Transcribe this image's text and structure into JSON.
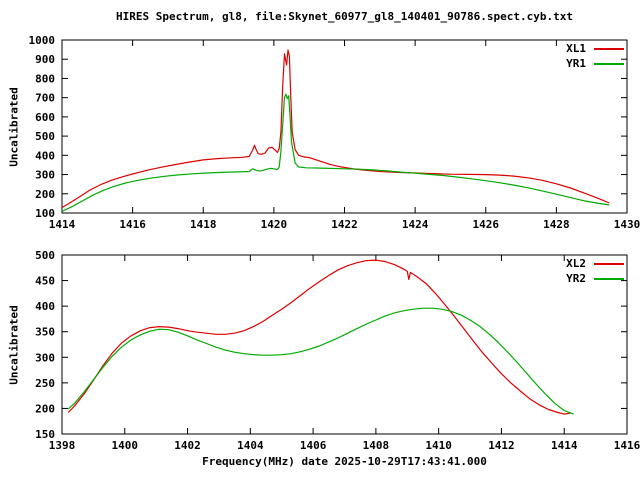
{
  "chart_data": [
    {
      "type": "line",
      "title": "HIRES Spectrum, gl8, file:Skynet_60977_gl8_140401_90786.spect.cyb.txt",
      "xlabel": "",
      "ylabel": "Uncalibrated",
      "xlim": [
        1414,
        1430
      ],
      "ylim": [
        100,
        1000
      ],
      "xticks": [
        1414,
        1416,
        1418,
        1420,
        1422,
        1424,
        1426,
        1428,
        1430
      ],
      "yticks": [
        100,
        200,
        300,
        400,
        500,
        600,
        700,
        800,
        900,
        1000
      ],
      "grid": false,
      "legend_position": "top-right",
      "legend": [
        {
          "name": "XL1",
          "color": "#dd0000"
        },
        {
          "name": "YR1",
          "color": "#00aa00"
        }
      ],
      "series": [
        {
          "name": "XL1",
          "color": "#dd0000",
          "points": [
            [
              1414.0,
              128
            ],
            [
              1414.2,
              150
            ],
            [
              1414.5,
              185
            ],
            [
              1414.8,
              220
            ],
            [
              1415.1,
              248
            ],
            [
              1415.4,
              270
            ],
            [
              1415.7,
              288
            ],
            [
              1416.0,
              303
            ],
            [
              1416.4,
              322
            ],
            [
              1416.8,
              338
            ],
            [
              1417.2,
              352
            ],
            [
              1417.6,
              365
            ],
            [
              1418.0,
              376
            ],
            [
              1418.4,
              383
            ],
            [
              1418.8,
              387
            ],
            [
              1419.1,
              390
            ],
            [
              1419.3,
              394
            ],
            [
              1419.4,
              428
            ],
            [
              1419.45,
              452
            ],
            [
              1419.5,
              430
            ],
            [
              1419.55,
              410
            ],
            [
              1419.65,
              405
            ],
            [
              1419.75,
              412
            ],
            [
              1419.85,
              438
            ],
            [
              1419.95,
              442
            ],
            [
              1420.05,
              425
            ],
            [
              1420.1,
              415
            ],
            [
              1420.15,
              435
            ],
            [
              1420.2,
              520
            ],
            [
              1420.25,
              760
            ],
            [
              1420.3,
              928
            ],
            [
              1420.33,
              900
            ],
            [
              1420.36,
              870
            ],
            [
              1420.4,
              948
            ],
            [
              1420.44,
              915
            ],
            [
              1420.48,
              700
            ],
            [
              1420.52,
              520
            ],
            [
              1420.6,
              430
            ],
            [
              1420.7,
              400
            ],
            [
              1420.85,
              392
            ],
            [
              1421.0,
              388
            ],
            [
              1421.3,
              370
            ],
            [
              1421.6,
              352
            ],
            [
              1421.9,
              340
            ],
            [
              1422.2,
              331
            ],
            [
              1422.5,
              324
            ],
            [
              1422.8,
              319
            ],
            [
              1423.1,
              315
            ],
            [
              1423.5,
              311
            ],
            [
              1424.0,
              308
            ],
            [
              1424.5,
              305
            ],
            [
              1425.0,
              302
            ],
            [
              1425.5,
              301
            ],
            [
              1426.0,
              300
            ],
            [
              1426.4,
              297
            ],
            [
              1426.8,
              292
            ],
            [
              1427.2,
              283
            ],
            [
              1427.6,
              270
            ],
            [
              1428.0,
              252
            ],
            [
              1428.4,
              230
            ],
            [
              1428.8,
              203
            ],
            [
              1429.2,
              175
            ],
            [
              1429.5,
              152
            ]
          ]
        },
        {
          "name": "YR1",
          "color": "#00aa00",
          "points": [
            [
              1414.0,
              108
            ],
            [
              1414.3,
              135
            ],
            [
              1414.6,
              165
            ],
            [
              1414.9,
              195
            ],
            [
              1415.2,
              220
            ],
            [
              1415.5,
              240
            ],
            [
              1415.8,
              256
            ],
            [
              1416.1,
              268
            ],
            [
              1416.5,
              281
            ],
            [
              1416.9,
              291
            ],
            [
              1417.3,
              298
            ],
            [
              1417.7,
              304
            ],
            [
              1418.1,
              308
            ],
            [
              1418.5,
              311
            ],
            [
              1419.0,
              314
            ],
            [
              1419.3,
              316
            ],
            [
              1419.4,
              330
            ],
            [
              1419.5,
              322
            ],
            [
              1419.6,
              318
            ],
            [
              1419.7,
              322
            ],
            [
              1419.8,
              328
            ],
            [
              1419.9,
              332
            ],
            [
              1420.0,
              330
            ],
            [
              1420.1,
              326
            ],
            [
              1420.15,
              340
            ],
            [
              1420.2,
              420
            ],
            [
              1420.25,
              560
            ],
            [
              1420.3,
              700
            ],
            [
              1420.34,
              718
            ],
            [
              1420.38,
              695
            ],
            [
              1420.42,
              710
            ],
            [
              1420.46,
              600
            ],
            [
              1420.5,
              470
            ],
            [
              1420.6,
              360
            ],
            [
              1420.7,
              340
            ],
            [
              1420.9,
              335
            ],
            [
              1421.2,
              334
            ],
            [
              1421.6,
              332
            ],
            [
              1422.0,
              330
            ],
            [
              1422.4,
              328
            ],
            [
              1422.8,
              324
            ],
            [
              1423.2,
              319
            ],
            [
              1423.6,
              313
            ],
            [
              1424.0,
              307
            ],
            [
              1424.4,
              301
            ],
            [
              1424.8,
              295
            ],
            [
              1425.2,
              287
            ],
            [
              1425.6,
              278
            ],
            [
              1426.0,
              268
            ],
            [
              1426.4,
              257
            ],
            [
              1426.8,
              245
            ],
            [
              1427.2,
              231
            ],
            [
              1427.6,
              215
            ],
            [
              1428.0,
              198
            ],
            [
              1428.4,
              180
            ],
            [
              1428.8,
              163
            ],
            [
              1429.2,
              150
            ],
            [
              1429.5,
              142
            ]
          ]
        }
      ]
    },
    {
      "type": "line",
      "title": "",
      "xlabel": "Frequency(MHz) date 2025-10-29T17:43:41.000",
      "ylabel": "Uncalibrated",
      "xlim": [
        1398,
        1416
      ],
      "ylim": [
        150,
        500
      ],
      "xticks": [
        1398,
        1400,
        1402,
        1404,
        1406,
        1408,
        1410,
        1412,
        1414,
        1416
      ],
      "yticks": [
        150,
        200,
        250,
        300,
        350,
        400,
        450,
        500
      ],
      "grid": false,
      "legend_position": "top-right",
      "legend": [
        {
          "name": "XL2",
          "color": "#dd0000"
        },
        {
          "name": "YR2",
          "color": "#00aa00"
        }
      ],
      "series": [
        {
          "name": "XL2",
          "color": "#dd0000",
          "points": [
            [
              1398.2,
              192
            ],
            [
              1398.4,
              205
            ],
            [
              1398.7,
              228
            ],
            [
              1399.0,
              255
            ],
            [
              1399.3,
              283
            ],
            [
              1399.6,
              308
            ],
            [
              1399.9,
              328
            ],
            [
              1400.2,
              342
            ],
            [
              1400.5,
              352
            ],
            [
              1400.8,
              358
            ],
            [
              1401.1,
              360
            ],
            [
              1401.4,
              359
            ],
            [
              1401.7,
              356
            ],
            [
              1402.0,
              352
            ],
            [
              1402.3,
              349
            ],
            [
              1402.6,
              347
            ],
            [
              1402.9,
              345
            ],
            [
              1403.2,
              345
            ],
            [
              1403.5,
              347
            ],
            [
              1403.8,
              352
            ],
            [
              1404.1,
              360
            ],
            [
              1404.4,
              370
            ],
            [
              1404.7,
              382
            ],
            [
              1405.0,
              394
            ],
            [
              1405.3,
              407
            ],
            [
              1405.6,
              421
            ],
            [
              1405.9,
              435
            ],
            [
              1406.2,
              448
            ],
            [
              1406.5,
              460
            ],
            [
              1406.8,
              471
            ],
            [
              1407.1,
              479
            ],
            [
              1407.4,
              485
            ],
            [
              1407.7,
              489
            ],
            [
              1408.0,
              490
            ],
            [
              1408.3,
              487
            ],
            [
              1408.6,
              481
            ],
            [
              1408.9,
              472
            ],
            [
              1409.0,
              468
            ],
            [
              1409.05,
              452
            ],
            [
              1409.1,
              466
            ],
            [
              1409.3,
              458
            ],
            [
              1409.6,
              444
            ],
            [
              1409.9,
              425
            ],
            [
              1410.2,
              403
            ],
            [
              1410.5,
              380
            ],
            [
              1410.8,
              356
            ],
            [
              1411.1,
              332
            ],
            [
              1411.4,
              309
            ],
            [
              1411.7,
              288
            ],
            [
              1412.0,
              268
            ],
            [
              1412.3,
              250
            ],
            [
              1412.6,
              234
            ],
            [
              1412.9,
              219
            ],
            [
              1413.2,
              207
            ],
            [
              1413.5,
              198
            ],
            [
              1413.8,
              192
            ],
            [
              1414.0,
              189
            ],
            [
              1414.2,
              191
            ]
          ]
        },
        {
          "name": "YR2",
          "color": "#00aa00",
          "points": [
            [
              1398.2,
              199
            ],
            [
              1398.4,
              210
            ],
            [
              1398.7,
              232
            ],
            [
              1399.0,
              256
            ],
            [
              1399.3,
              280
            ],
            [
              1399.6,
              302
            ],
            [
              1399.9,
              320
            ],
            [
              1400.2,
              334
            ],
            [
              1400.5,
              344
            ],
            [
              1400.8,
              351
            ],
            [
              1401.1,
              355
            ],
            [
              1401.4,
              354
            ],
            [
              1401.7,
              349
            ],
            [
              1402.0,
              342
            ],
            [
              1402.3,
              334
            ],
            [
              1402.6,
              327
            ],
            [
              1402.9,
              320
            ],
            [
              1403.2,
              314
            ],
            [
              1403.5,
              310
            ],
            [
              1403.8,
              307
            ],
            [
              1404.1,
              305
            ],
            [
              1404.4,
              304
            ],
            [
              1404.7,
              304
            ],
            [
              1405.0,
              305
            ],
            [
              1405.3,
              307
            ],
            [
              1405.6,
              311
            ],
            [
              1405.9,
              316
            ],
            [
              1406.2,
              322
            ],
            [
              1406.5,
              330
            ],
            [
              1406.8,
              338
            ],
            [
              1407.1,
              347
            ],
            [
              1407.4,
              356
            ],
            [
              1407.7,
              365
            ],
            [
              1408.0,
              373
            ],
            [
              1408.3,
              381
            ],
            [
              1408.6,
              387
            ],
            [
              1408.9,
              391
            ],
            [
              1409.2,
              394
            ],
            [
              1409.5,
              396
            ],
            [
              1409.8,
              396
            ],
            [
              1410.1,
              394
            ],
            [
              1410.4,
              390
            ],
            [
              1410.7,
              383
            ],
            [
              1411.0,
              373
            ],
            [
              1411.3,
              361
            ],
            [
              1411.6,
              346
            ],
            [
              1411.9,
              329
            ],
            [
              1412.2,
              310
            ],
            [
              1412.5,
              290
            ],
            [
              1412.8,
              269
            ],
            [
              1413.1,
              248
            ],
            [
              1413.4,
              228
            ],
            [
              1413.7,
              210
            ],
            [
              1414.0,
              196
            ],
            [
              1414.3,
              189
            ]
          ]
        }
      ]
    }
  ],
  "colors": {
    "xl_series": "#dd0000",
    "yr_series": "#00aa00",
    "axis": "#000000",
    "background": "#ffffff"
  }
}
